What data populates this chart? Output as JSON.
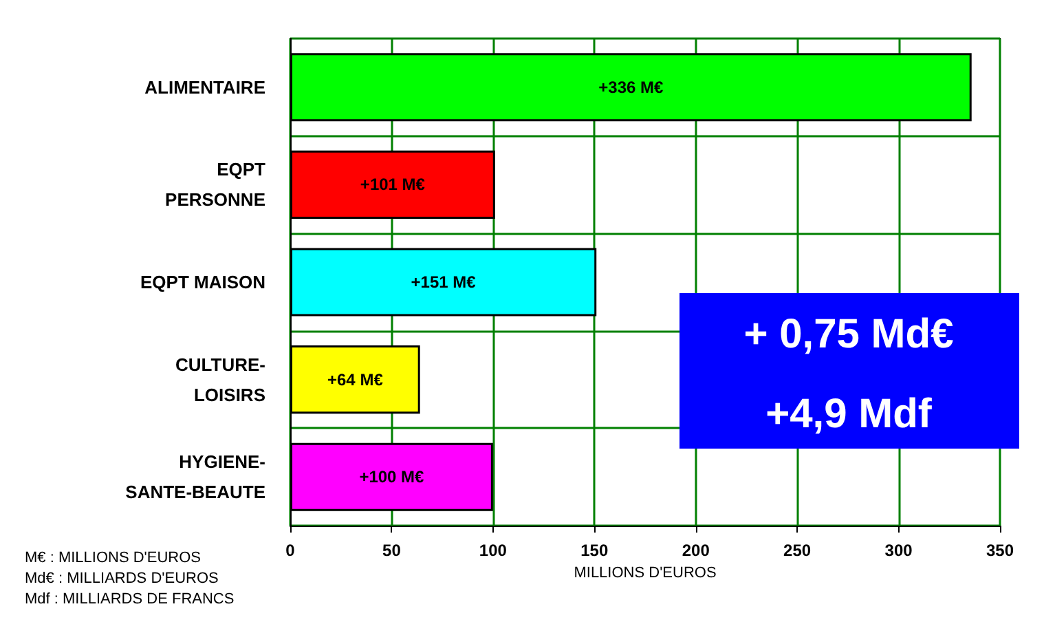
{
  "chart_data": {
    "type": "bar",
    "orientation": "horizontal",
    "categories": [
      "ALIMENTAIRE",
      "EQPT\nPERSONNE",
      "EQPT MAISON",
      "CULTURE-\nLOISIRS",
      "HYGIENE-\nSANTE-BEAUTE"
    ],
    "values": [
      336,
      101,
      151,
      64,
      100
    ],
    "colors": [
      "#00ff00",
      "#ff0000",
      "#00ffff",
      "#ffff00",
      "#ff00ff"
    ],
    "value_labels": [
      "+336 M€",
      "+101 M€",
      "+151 M€",
      "+64 M€",
      "+100 M€"
    ],
    "xlim": [
      0,
      350
    ],
    "xticks": [
      0,
      50,
      100,
      150,
      200,
      250,
      300,
      350
    ],
    "xlabel": "MILLIONS D'EUROS",
    "grid": true,
    "annotations": [
      "+ 0,75 Md€",
      "+4,9 Mdf",
      "M€ : MILLIONS D'EUROS",
      "Md€ : MILLIARDS D'EUROS",
      "Mdf : MILLIARDS DE FRANCS"
    ]
  }
}
